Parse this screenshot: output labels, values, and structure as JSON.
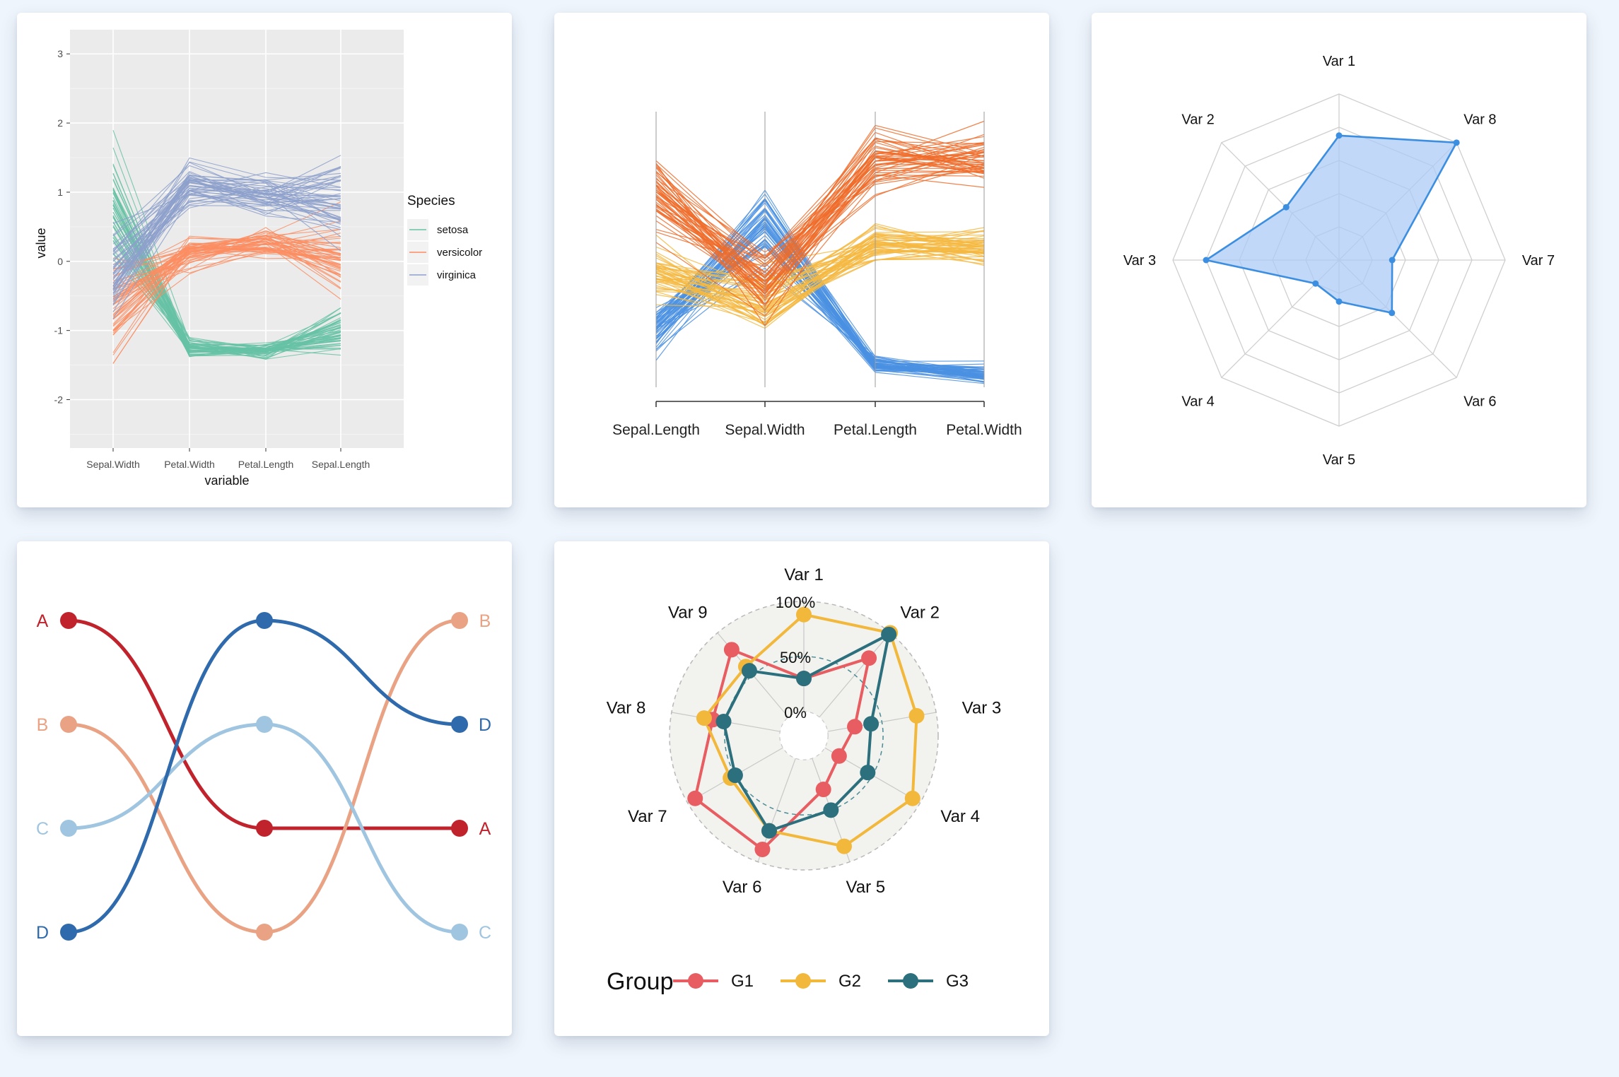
{
  "charts": {
    "gg": {
      "type": "line",
      "xlabel": "variable",
      "ylabel": "value",
      "categories": [
        "Sepal.Width",
        "Petal.Width",
        "Petal.Length",
        "Sepal.Length"
      ],
      "yticks": [
        "3",
        "2",
        "1",
        "0",
        "-1",
        "-2"
      ],
      "ylim": [
        -2.7,
        3.35
      ],
      "legend_title": "Species",
      "series": [
        {
          "name": "setosa",
          "color": "#66c2a5"
        },
        {
          "name": "versicolor",
          "color": "#fc8d62"
        },
        {
          "name": "virginica",
          "color": "#8da0cb"
        }
      ],
      "legend": "right",
      "grid": true
    },
    "parcoord": {
      "type": "line",
      "categories": [
        "Sepal.Length",
        "Sepal.Width",
        "Petal.Length",
        "Petal.Width"
      ],
      "series": [
        {
          "color": "#4a90e2"
        },
        {
          "color": "#f5b942"
        },
        {
          "color": "#ef6c2a"
        }
      ]
    },
    "radar8": {
      "type": "radar",
      "axes": [
        "Var 1",
        "Var 8",
        "Var 7",
        "Var 6",
        "Var 5",
        "Var 4",
        "Var 3",
        "Var 2"
      ],
      "values": [
        0.75,
        1.0,
        0.32,
        0.45,
        0.25,
        0.2,
        0.8,
        0.45
      ],
      "color": "#3b8ee0",
      "fill": "#aecbf5",
      "rings": 5
    },
    "bump": {
      "type": "line",
      "left_labels": [
        "A",
        "B",
        "C",
        "D"
      ],
      "right_labels": [
        "B",
        "D",
        "A",
        "C"
      ],
      "series": [
        {
          "name": "A",
          "ranks": [
            1,
            3,
            3
          ],
          "color": "#c0232c"
        },
        {
          "name": "B",
          "ranks": [
            2,
            4,
            1
          ],
          "color": "#e9a283"
        },
        {
          "name": "C",
          "ranks": [
            3,
            2,
            4
          ],
          "color": "#9fc5e0"
        },
        {
          "name": "D",
          "ranks": [
            4,
            1,
            2
          ],
          "color": "#2f6aad"
        }
      ]
    },
    "radar9": {
      "type": "radar",
      "axes": [
        "Var 1",
        "Var 2",
        "Var 3",
        "Var 4",
        "Var 5",
        "Var 6",
        "Var 7",
        "Var 8",
        "Var 9"
      ],
      "grid_labels": [
        "0%",
        "50%",
        "100%"
      ],
      "legend_title": "Group",
      "series": [
        {
          "name": "G1",
          "color": "#e85d61",
          "values": [
            0.3,
            0.7,
            0.25,
            0.15,
            0.3,
            0.88,
            0.92,
            0.62,
            0.8
          ]
        },
        {
          "name": "G2",
          "color": "#f2b83b",
          "values": [
            0.88,
            1.0,
            0.82,
            0.92,
            0.85,
            0.7,
            0.55,
            0.7,
            0.6
          ]
        },
        {
          "name": "G3",
          "color": "#2c6f7d",
          "values": [
            0.3,
            0.98,
            0.4,
            0.45,
            0.5,
            0.7,
            0.5,
            0.52,
            0.55
          ]
        }
      ]
    }
  }
}
